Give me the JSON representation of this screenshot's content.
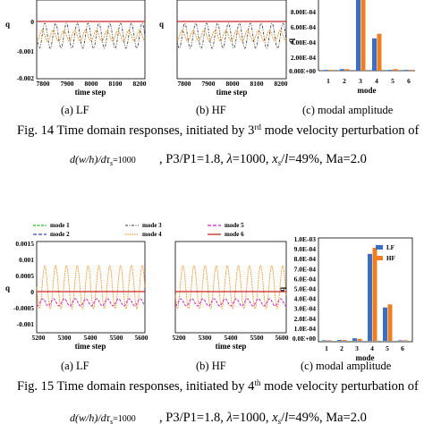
{
  "figure14": {
    "panel_a": {
      "xticks": [
        "7800",
        "7900",
        "8000",
        "8100",
        "8200"
      ],
      "yticks": [
        "0",
        "-0.001",
        "-0.002"
      ],
      "ylabel": "q",
      "xlabel": "time step",
      "caption": "(a) LF"
    },
    "panel_b": {
      "xticks": [
        "7800",
        "7900",
        "8000",
        "8100",
        "8200"
      ],
      "ylabel": "q",
      "xlabel": "time step",
      "caption": "(b) HF"
    },
    "panel_c": {
      "yticks": [
        "8.00E-04",
        "6.00E-04",
        "4.00E-04",
        "2.00E-04",
        "0.00E+00"
      ],
      "xticks": [
        "1",
        "2",
        "3",
        "4",
        "5",
        "6"
      ],
      "ylabel": "q",
      "xlabel": "mode",
      "caption": "(c) modal amplitude"
    },
    "caption_line1": "Fig. 14 Time domain responses, initiated by 3rd mode velocity perturbation of",
    "caption_line2_rest": ", P3/P1=1.8,  λ=1000,  xₛ/l=49%, Ma=2.0"
  },
  "figure15": {
    "legend": [
      "mode 1",
      "mode 2",
      "mode 3",
      "mode 4",
      "mode 5",
      "mode 6"
    ],
    "panel_a": {
      "yticks": [
        "0.0015",
        "0.001",
        "0.0005",
        "0",
        "-0.0005",
        "-0.001"
      ],
      "xticks": [
        "5200",
        "5300",
        "5400",
        "5500",
        "5600"
      ],
      "ylabel": "q",
      "xlabel": "time step",
      "caption": "(a) LF"
    },
    "panel_b": {
      "xticks": [
        "5200",
        "5300",
        "5400",
        "5500",
        "5600"
      ],
      "xlabel": "time step",
      "caption": "(b) HF"
    },
    "panel_c": {
      "yticks": [
        "1.0E-03",
        "9.0E-04",
        "8.0E-04",
        "7.0E-04",
        "6.0E-04",
        "5.0E-04",
        "4.0E-04",
        "3.0E-04",
        "2.0E-04",
        "1.0E-04",
        "0.0E+00"
      ],
      "xticks": [
        "1",
        "2",
        "3",
        "4",
        "5",
        "6"
      ],
      "legend": [
        "LF",
        "HF"
      ],
      "ylabel": "q",
      "xlabel": "mode",
      "caption": "(c) modal amplitude"
    },
    "caption_line1": "Fig. 15 Time domain responses, initiated by 4th mode velocity perturbation of",
    "caption_line2_rest": ", P3/P1=1.8,  λ=1000,  xₛ/l=49%, Ma=2.0"
  },
  "shared": {
    "ratio_expr": "d(w/h)/dτₛ",
    "ratio_value": "=1000"
  },
  "chart_data": [
    {
      "type": "bar",
      "figure": "Fig. 14 (c)",
      "categories": [
        "1",
        "2",
        "3",
        "4",
        "5",
        "6"
      ],
      "ylabel": "q",
      "xlabel": "mode",
      "ylim": [
        0,
        0.001
      ],
      "series": [
        {
          "values": [
            1e-05,
            2e-05,
            0.00096,
            0.00042,
            1e-05,
            1e-05
          ]
        },
        {
          "values": [
            1e-05,
            2e-05,
            0.00096,
            0.00048,
            2e-05,
            1e-05
          ]
        }
      ]
    },
    {
      "type": "bar",
      "figure": "Fig. 15 (c)",
      "categories": [
        "1",
        "2",
        "3",
        "4",
        "5",
        "6"
      ],
      "ylabel": "q",
      "xlabel": "mode",
      "ylim": [
        0,
        0.001
      ],
      "series": [
        {
          "name": "LF",
          "values": [
            5e-06,
            8e-06,
            2.5e-05,
            0.00086,
            0.00033,
            5e-06
          ]
        },
        {
          "name": "HF",
          "values": [
            5e-06,
            8e-06,
            2e-05,
            0.00092,
            0.00036,
            5e-06
          ]
        }
      ]
    }
  ],
  "colors": {
    "mode1": "#22bb22",
    "mode2": "#3344cc",
    "mode3": "#333333",
    "mode4": "#f08a1c",
    "mode5": "#cc22cc",
    "mode6": "#cc2222",
    "lf_bar": "#3a6fc4",
    "hf_bar": "#ef7d22"
  }
}
